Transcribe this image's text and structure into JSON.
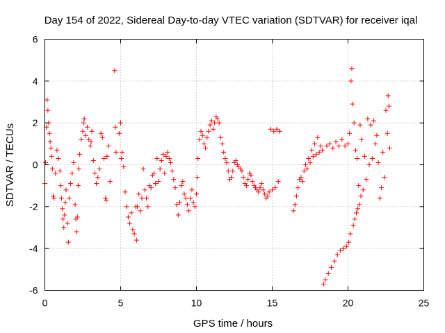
{
  "chart_data": {
    "type": "scatter",
    "title": "Day 154 of 2022, Sidereal Day-to-day VTEC variation (SDTVAR) for receiver iqal",
    "xlabel": "GPS time / hours",
    "ylabel": "SDTVAR / TECUs",
    "xlim": [
      0,
      25
    ],
    "ylim": [
      -6,
      6
    ],
    "xticks": [
      0,
      5,
      10,
      15,
      20,
      25
    ],
    "yticks": [
      -6,
      -4,
      -2,
      0,
      2,
      4,
      6
    ],
    "xtick_labels": [
      "0",
      "5",
      "10",
      "15",
      "20",
      "25"
    ],
    "ytick_labels": [
      "-6",
      "-4",
      "-2",
      "0",
      "2",
      "4",
      "6"
    ],
    "grid": true,
    "marker": "+",
    "color": "#ff0000",
    "series": [
      {
        "name": "SDTVAR",
        "points": [
          [
            0.0,
            -0.9
          ],
          [
            0.05,
            0.1
          ],
          [
            0.1,
            1.8
          ],
          [
            0.15,
            3.1
          ],
          [
            0.2,
            2.6
          ],
          [
            0.25,
            2.0
          ],
          [
            0.3,
            1.5
          ],
          [
            0.35,
            1.1
          ],
          [
            0.4,
            0.8
          ],
          [
            0.45,
            0.4
          ],
          [
            0.5,
            -0.2
          ],
          [
            0.55,
            -1.5
          ],
          [
            0.6,
            -1.6
          ],
          [
            0.7,
            -0.4
          ],
          [
            0.8,
            0.7
          ],
          [
            0.9,
            0.3
          ],
          [
            1.0,
            -0.3
          ],
          [
            1.05,
            -1.0
          ],
          [
            1.1,
            -1.6
          ],
          [
            1.15,
            -2.1
          ],
          [
            1.2,
            -2.6
          ],
          [
            1.25,
            -3.0
          ],
          [
            1.3,
            -2.4
          ],
          [
            1.35,
            -1.8
          ],
          [
            1.4,
            -1.2
          ],
          [
            1.5,
            -2.8
          ],
          [
            1.55,
            -3.7
          ],
          [
            1.6,
            -1.6
          ],
          [
            1.7,
            -0.9
          ],
          [
            1.8,
            -0.4
          ],
          [
            1.9,
            0.1
          ],
          [
            2.0,
            -1.9
          ],
          [
            2.05,
            -2.6
          ],
          [
            2.1,
            -3.2
          ],
          [
            2.15,
            -2.5
          ],
          [
            2.2,
            -1.0
          ],
          [
            2.25,
            -0.2
          ],
          [
            2.3,
            0.5
          ],
          [
            2.4,
            1.2
          ],
          [
            2.5,
            1.6
          ],
          [
            2.55,
            2.0
          ],
          [
            2.6,
            2.2
          ],
          [
            2.7,
            1.4
          ],
          [
            2.8,
            1.8
          ],
          [
            2.9,
            1.2
          ],
          [
            3.0,
            0.9
          ],
          [
            3.05,
            1.1
          ],
          [
            3.1,
            1.6
          ],
          [
            3.2,
            0.2
          ],
          [
            3.3,
            -0.4
          ],
          [
            3.4,
            -0.9
          ],
          [
            3.5,
            -0.6
          ],
          [
            3.6,
            -0.2
          ],
          [
            3.7,
            1.5
          ],
          [
            3.8,
            1.3
          ],
          [
            3.9,
            0.3
          ],
          [
            4.0,
            -1.6
          ],
          [
            4.05,
            -1.7
          ],
          [
            4.1,
            0.4
          ],
          [
            4.2,
            0.9
          ],
          [
            4.3,
            -0.8
          ],
          [
            4.6,
            4.5
          ],
          [
            4.65,
            1.8
          ],
          [
            4.7,
            0.6
          ],
          [
            4.9,
            1.5
          ],
          [
            5.0,
            2.0
          ],
          [
            5.05,
            0.3
          ],
          [
            5.1,
            0.6
          ],
          [
            5.2,
            -0.1
          ],
          [
            5.3,
            -1.3
          ],
          [
            5.4,
            -2.0
          ],
          [
            5.5,
            -2.5
          ],
          [
            5.6,
            -2.8
          ],
          [
            5.7,
            -2.3
          ],
          [
            5.8,
            -3.1
          ],
          [
            5.9,
            -3.3
          ],
          [
            6.0,
            -2.0
          ],
          [
            6.05,
            -3.6
          ],
          [
            6.1,
            -2.0
          ],
          [
            6.2,
            -1.4
          ],
          [
            6.3,
            -2.2
          ],
          [
            6.4,
            -1.6
          ],
          [
            6.5,
            -0.2
          ],
          [
            6.6,
            -1.2
          ],
          [
            6.7,
            -1.6
          ],
          [
            6.8,
            -2.0
          ],
          [
            6.9,
            -1.0
          ],
          [
            7.0,
            -1.1
          ],
          [
            7.1,
            -0.5
          ],
          [
            7.2,
            -0.4
          ],
          [
            7.3,
            -0.9
          ],
          [
            7.4,
            0.3
          ],
          [
            7.5,
            -0.8
          ],
          [
            7.6,
            -0.2
          ],
          [
            7.7,
            0.2
          ],
          [
            7.8,
            0.5
          ],
          [
            7.9,
            -0.4
          ],
          [
            8.0,
            0.4
          ],
          [
            8.1,
            0.6
          ],
          [
            8.2,
            0.3
          ],
          [
            8.3,
            0.1
          ],
          [
            8.4,
            -0.3
          ],
          [
            8.5,
            -0.7
          ],
          [
            8.6,
            -1.1
          ],
          [
            8.7,
            -1.9
          ],
          [
            8.8,
            -2.4
          ],
          [
            8.9,
            -1.8
          ],
          [
            9.0,
            -1.0
          ],
          [
            9.1,
            -0.8
          ],
          [
            9.2,
            -1.4
          ],
          [
            9.3,
            -1.6
          ],
          [
            9.4,
            -1.9
          ],
          [
            9.5,
            -2.2
          ],
          [
            9.6,
            -1.6
          ],
          [
            9.7,
            -1.2
          ],
          [
            9.8,
            -1.8
          ],
          [
            9.9,
            -2.0
          ],
          [
            10.0,
            -1.4
          ],
          [
            10.05,
            -0.6
          ],
          [
            10.1,
            0.3
          ],
          [
            10.2,
            1.2
          ],
          [
            10.3,
            1.6
          ],
          [
            10.4,
            1.4
          ],
          [
            10.5,
            1.0
          ],
          [
            10.6,
            0.8
          ],
          [
            10.7,
            1.3
          ],
          [
            10.8,
            1.6
          ],
          [
            10.9,
            1.9
          ],
          [
            11.0,
            2.1
          ],
          [
            11.1,
            1.7
          ],
          [
            11.2,
            2.0
          ],
          [
            11.3,
            2.3
          ],
          [
            11.4,
            2.2
          ],
          [
            11.5,
            2.0
          ],
          [
            11.6,
            1.3
          ],
          [
            11.7,
            1.0
          ],
          [
            11.8,
            0.6
          ],
          [
            11.9,
            0.3
          ],
          [
            12.0,
            0.1
          ],
          [
            12.1,
            -0.3
          ],
          [
            12.2,
            -0.7
          ],
          [
            12.3,
            -0.6
          ],
          [
            12.4,
            -0.3
          ],
          [
            12.5,
            0.1
          ],
          [
            12.6,
            0.2
          ],
          [
            12.7,
            0.0
          ],
          [
            12.8,
            -0.1
          ],
          [
            12.9,
            -0.2
          ],
          [
            13.0,
            -0.3
          ],
          [
            13.1,
            -0.6
          ],
          [
            13.2,
            -0.9
          ],
          [
            13.3,
            -1.0
          ],
          [
            13.4,
            -0.7
          ],
          [
            13.5,
            -0.4
          ],
          [
            13.6,
            -0.5
          ],
          [
            13.7,
            -0.8
          ],
          [
            13.8,
            -1.0
          ],
          [
            13.9,
            -1.1
          ],
          [
            14.0,
            -1.2
          ],
          [
            14.1,
            -1.3
          ],
          [
            14.2,
            -1.1
          ],
          [
            14.3,
            -0.9
          ],
          [
            14.4,
            -1.2
          ],
          [
            14.5,
            -1.4
          ],
          [
            14.6,
            -1.6
          ],
          [
            14.7,
            -1.5
          ],
          [
            14.8,
            -1.3
          ],
          [
            14.9,
            1.7
          ],
          [
            15.0,
            -1.2
          ],
          [
            15.1,
            1.6
          ],
          [
            15.2,
            -1.1
          ],
          [
            15.3,
            1.7
          ],
          [
            15.4,
            -0.8
          ],
          [
            15.5,
            1.6
          ],
          [
            16.4,
            -2.2
          ],
          [
            16.5,
            -1.9
          ],
          [
            16.6,
            -1.5
          ],
          [
            16.7,
            -1.1
          ],
          [
            16.8,
            -0.7
          ],
          [
            16.9,
            -0.6
          ],
          [
            17.0,
            -0.8
          ],
          [
            17.1,
            -0.3
          ],
          [
            17.2,
            0.0
          ],
          [
            17.3,
            -0.2
          ],
          [
            17.4,
            0.3
          ],
          [
            17.5,
            0.1
          ],
          [
            17.6,
            0.7
          ],
          [
            17.7,
            0.4
          ],
          [
            17.8,
            1.0
          ],
          [
            17.9,
            0.5
          ],
          [
            18.0,
            1.3
          ],
          [
            18.1,
            0.6
          ],
          [
            18.2,
            0.9
          ],
          [
            18.3,
            0.7
          ],
          [
            18.4,
            -5.7
          ],
          [
            18.5,
            -5.5
          ],
          [
            18.6,
            0.9
          ],
          [
            18.7,
            -5.2
          ],
          [
            18.8,
            1.0
          ],
          [
            18.9,
            -4.9
          ],
          [
            19.0,
            0.8
          ],
          [
            19.1,
            -4.6
          ],
          [
            19.2,
            1.1
          ],
          [
            19.3,
            -4.3
          ],
          [
            19.4,
            0.9
          ],
          [
            19.5,
            -4.1
          ],
          [
            19.6,
            1.2
          ],
          [
            19.7,
            -4.0
          ],
          [
            19.8,
            0.9
          ],
          [
            19.9,
            -3.9
          ],
          [
            20.0,
            1.0
          ],
          [
            20.05,
            -3.7
          ],
          [
            20.1,
            1.5
          ],
          [
            20.15,
            -3.3
          ],
          [
            20.2,
            4.0
          ],
          [
            20.25,
            4.6
          ],
          [
            20.3,
            2.9
          ],
          [
            20.35,
            -2.9
          ],
          [
            20.4,
            2.0
          ],
          [
            20.45,
            -2.6
          ],
          [
            20.5,
            0.7
          ],
          [
            20.55,
            -2.3
          ],
          [
            20.6,
            0.3
          ],
          [
            20.65,
            -2.1
          ],
          [
            20.7,
            -1.0
          ],
          [
            20.75,
            -1.9
          ],
          [
            20.8,
            1.9
          ],
          [
            20.85,
            -1.5
          ],
          [
            20.9,
            1.2
          ],
          [
            21.0,
            -1.2
          ],
          [
            21.1,
            0.4
          ],
          [
            21.2,
            -0.7
          ],
          [
            21.3,
            2.2
          ],
          [
            21.4,
            0.0
          ],
          [
            21.5,
            1.9
          ],
          [
            21.6,
            0.3
          ],
          [
            21.7,
            2.1
          ],
          [
            21.8,
            1.0
          ],
          [
            21.9,
            1.4
          ],
          [
            22.0,
            0.1
          ],
          [
            22.1,
            -1.6
          ],
          [
            22.2,
            -1.1
          ],
          [
            22.3,
            0.6
          ],
          [
            22.4,
            -0.6
          ],
          [
            22.5,
            2.6
          ],
          [
            22.6,
            1.5
          ],
          [
            22.65,
            3.3
          ],
          [
            22.7,
            2.8
          ],
          [
            22.75,
            0.8
          ]
        ]
      }
    ]
  }
}
